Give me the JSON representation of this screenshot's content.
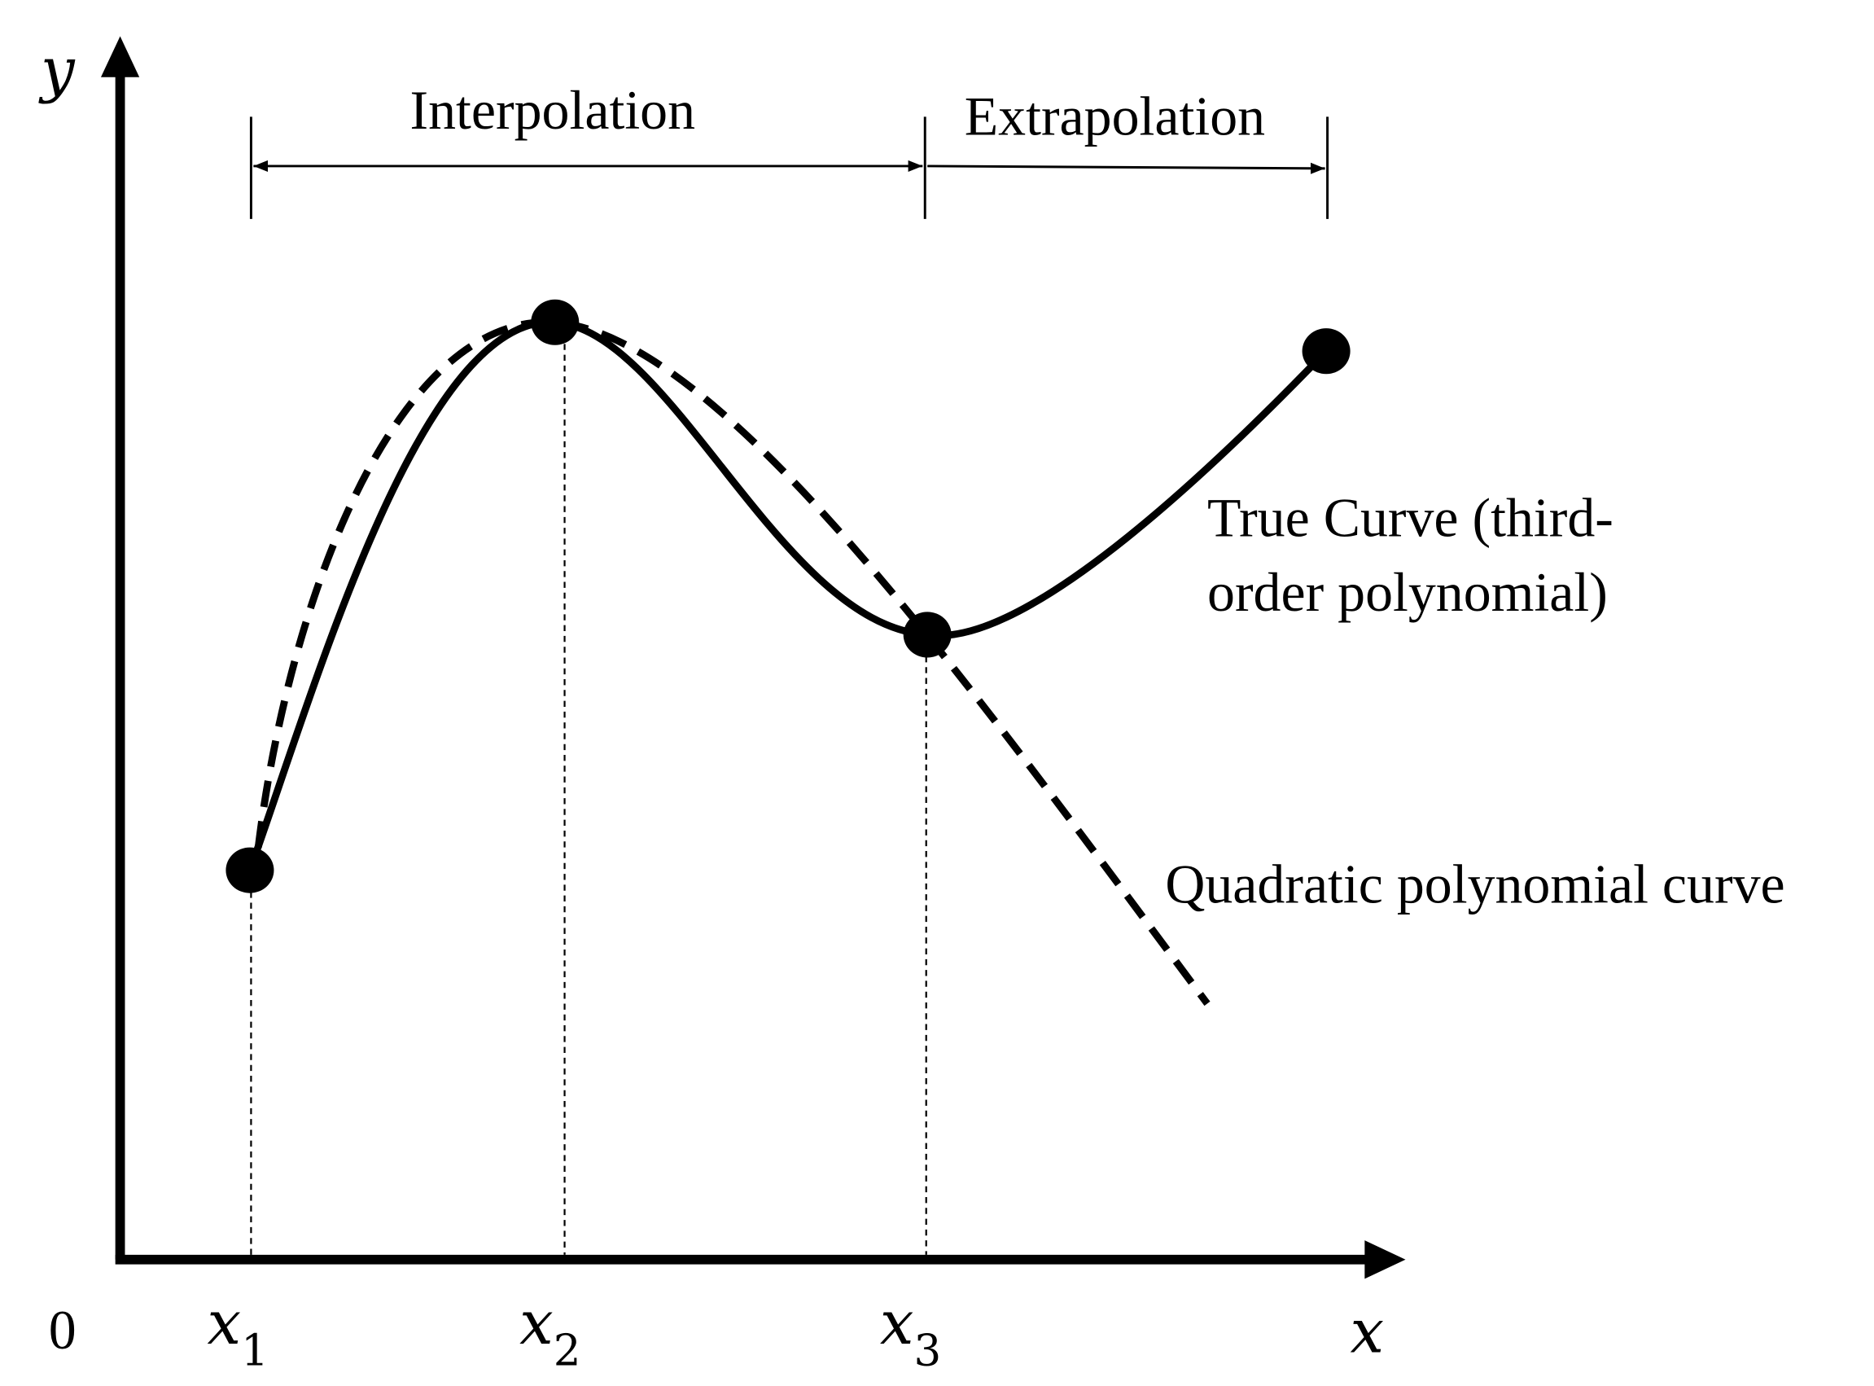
{
  "axes": {
    "y_label": "y",
    "x_label": "x",
    "origin": "0"
  },
  "x_ticks": [
    {
      "var": "x",
      "sub": "1"
    },
    {
      "var": "x",
      "sub": "2"
    },
    {
      "var": "x",
      "sub": "3"
    }
  ],
  "ranges": {
    "interpolation": "Interpolation",
    "extrapolation": "Extrapolation"
  },
  "curves": {
    "true_curve": {
      "lines": [
        "True Curve (third-",
        "order polynomial)"
      ]
    },
    "quadratic": {
      "label": "Quadratic polynomial curve"
    }
  }
}
